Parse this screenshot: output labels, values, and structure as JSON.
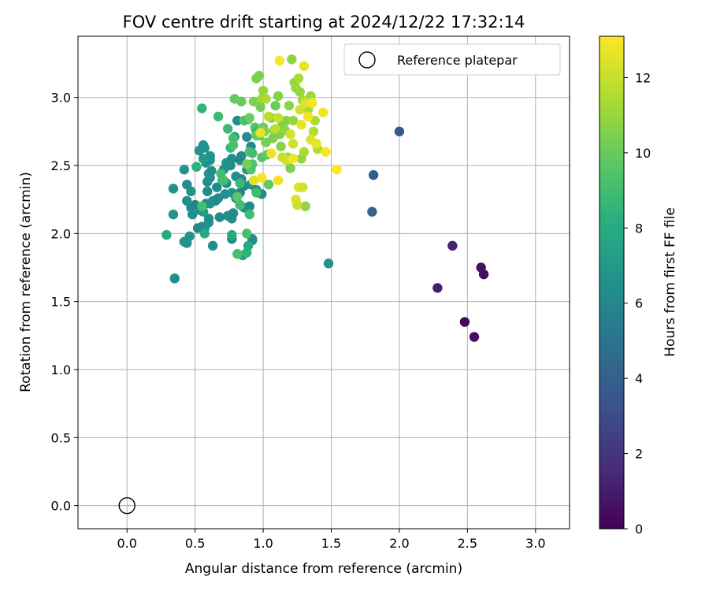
{
  "chart_data": {
    "type": "scatter",
    "title": "FOV centre drift starting at 2024/12/22 17:32:14",
    "xlabel": "Angular distance from reference (arcmin)",
    "ylabel": "Rotation from reference (arcmin)",
    "xlim": [
      -0.36,
      3.25
    ],
    "ylim": [
      -0.17,
      3.45
    ],
    "xticks": [
      "0.0",
      "0.5",
      "1.0",
      "1.5",
      "2.0",
      "2.5",
      "3.0"
    ],
    "yticks": [
      "0.0",
      "0.5",
      "1.0",
      "1.5",
      "2.0",
      "2.5",
      "3.0"
    ],
    "grid": true,
    "legend": {
      "position": "upper-right",
      "entries": [
        "Reference platepar"
      ]
    },
    "reference_point": {
      "label": "Reference platepar",
      "x": 0.0,
      "y": 0.0,
      "marker": "open-circle"
    },
    "colorbar": {
      "label": "Hours from first FF file",
      "colormap": "viridis",
      "range": [
        0,
        13.1
      ],
      "ticks": [
        "0",
        "2",
        "4",
        "6",
        "8",
        "10",
        "12"
      ]
    },
    "series": [
      {
        "marker": "filled-circle",
        "points": [
          [
            2.48,
            1.35,
            0.3
          ],
          [
            2.55,
            1.24,
            0.5
          ],
          [
            2.62,
            1.7,
            0.4
          ],
          [
            2.6,
            1.75,
            0.6
          ],
          [
            2.28,
            1.6,
            1.0
          ],
          [
            2.39,
            1.91,
            1.3
          ],
          [
            2.0,
            2.75,
            3.6
          ],
          [
            1.81,
            2.43,
            3.9
          ],
          [
            1.8,
            2.16,
            4.1
          ],
          [
            0.35,
            1.67,
            6.5
          ],
          [
            1.48,
            1.78,
            6.6
          ],
          [
            0.63,
            1.91,
            6.4
          ],
          [
            0.42,
            1.94,
            6.9
          ],
          [
            0.44,
            1.93,
            6.7
          ],
          [
            0.46,
            1.98,
            6.8
          ],
          [
            0.55,
            2.05,
            6.5
          ],
          [
            0.57,
            2.04,
            6.3
          ],
          [
            0.6,
            2.08,
            6.6
          ],
          [
            0.6,
            2.11,
            6.4
          ],
          [
            0.68,
            2.12,
            6.2
          ],
          [
            0.74,
            2.13,
            6.5
          ],
          [
            0.77,
            2.11,
            6.4
          ],
          [
            0.78,
            2.15,
            6.3
          ],
          [
            0.86,
            2.19,
            6.6
          ],
          [
            0.9,
            2.2,
            6.2
          ],
          [
            0.92,
            1.95,
            6.2
          ],
          [
            0.92,
            1.96,
            6.3
          ],
          [
            0.77,
            1.96,
            6.4
          ],
          [
            0.52,
            2.04,
            6.0
          ],
          [
            0.34,
            2.14,
            6.6
          ],
          [
            0.44,
            2.24,
            6.3
          ],
          [
            0.47,
            2.19,
            6.1
          ],
          [
            0.48,
            2.14,
            6.5
          ],
          [
            0.5,
            2.21,
            5.8
          ],
          [
            0.54,
            2.17,
            6.2
          ],
          [
            0.56,
            2.16,
            7.3
          ],
          [
            0.58,
            2.22,
            6.1
          ],
          [
            0.61,
            2.22,
            6.6
          ],
          [
            0.63,
            2.24,
            6.5
          ],
          [
            0.65,
            2.24,
            6.3
          ],
          [
            0.67,
            2.26,
            6.1
          ],
          [
            0.72,
            2.29,
            6.5
          ],
          [
            0.77,
            2.3,
            6.7
          ],
          [
            0.8,
            2.26,
            6.5
          ],
          [
            0.83,
            2.3,
            5.9
          ],
          [
            0.86,
            2.35,
            6.2
          ],
          [
            0.91,
            2.36,
            6.5
          ],
          [
            0.95,
            2.32,
            6.4
          ],
          [
            0.99,
            2.29,
            6.3
          ],
          [
            0.34,
            2.33,
            6.6
          ],
          [
            0.44,
            2.36,
            6.4
          ],
          [
            0.47,
            2.31,
            6.7
          ],
          [
            0.59,
            2.31,
            6.4
          ],
          [
            0.59,
            2.38,
            6.4
          ],
          [
            0.61,
            2.41,
            6.5
          ],
          [
            0.6,
            2.44,
            6.7
          ],
          [
            0.62,
            2.46,
            6.3
          ],
          [
            0.66,
            2.34,
            6.2
          ],
          [
            0.73,
            2.37,
            6.4
          ],
          [
            0.8,
            2.42,
            6.3
          ],
          [
            0.84,
            2.4,
            6.1
          ],
          [
            0.42,
            2.47,
            6.7
          ],
          [
            0.58,
            2.52,
            6.6
          ],
          [
            0.61,
            2.54,
            6.5
          ],
          [
            0.61,
            2.57,
            6.7
          ],
          [
            0.56,
            2.55,
            7.1
          ],
          [
            0.57,
            2.63,
            6.8
          ],
          [
            0.56,
            2.65,
            6.6
          ],
          [
            0.53,
            2.61,
            6.7
          ],
          [
            0.73,
            2.52,
            6.6
          ],
          [
            0.76,
            2.5,
            6.4
          ],
          [
            0.71,
            2.47,
            6.5
          ],
          [
            0.77,
            2.55,
            6.4
          ],
          [
            0.83,
            2.54,
            6.2
          ],
          [
            0.79,
            2.71,
            6.5
          ],
          [
            0.88,
            2.71,
            6.3
          ],
          [
            0.91,
            2.64,
            6.1
          ],
          [
            0.88,
            2.47,
            6.7
          ],
          [
            0.84,
            2.57,
            6.1
          ],
          [
            0.81,
            2.83,
            6.3
          ],
          [
            0.29,
            1.99,
            7.9
          ],
          [
            0.57,
            2.0,
            7.9
          ],
          [
            0.77,
            1.99,
            7.9
          ],
          [
            0.85,
            1.84,
            7.5
          ],
          [
            0.88,
            1.86,
            8.4
          ],
          [
            0.89,
            1.91,
            8.0
          ],
          [
            0.55,
            2.92,
            8.6
          ],
          [
            0.51,
            2.49,
            8.3
          ],
          [
            0.55,
            2.2,
            9.1
          ],
          [
            0.67,
            2.86,
            8.9
          ],
          [
            0.69,
            2.44,
            9.0
          ],
          [
            0.7,
            2.39,
            8.6
          ],
          [
            0.71,
            2.39,
            9.1
          ],
          [
            0.74,
            2.77,
            8.8
          ],
          [
            0.76,
            2.63,
            8.7
          ],
          [
            0.78,
            2.7,
            9.1
          ],
          [
            0.78,
            2.65,
            9.3
          ],
          [
            0.81,
            1.85,
            9.2
          ],
          [
            0.83,
            2.21,
            9.0
          ],
          [
            0.83,
            2.37,
            8.8
          ],
          [
            0.86,
            2.83,
            9.4
          ],
          [
            0.88,
            2.0,
            9.2
          ],
          [
            0.89,
            2.84,
            8.9
          ],
          [
            0.9,
            2.14,
            9.0
          ],
          [
            0.9,
            2.6,
            9.3
          ],
          [
            0.91,
            2.47,
            9.5
          ],
          [
            0.92,
            2.51,
            9.4
          ],
          [
            0.92,
            2.59,
            9.0
          ],
          [
            0.94,
            2.78,
            9.6
          ],
          [
            0.95,
            2.3,
            8.9
          ],
          [
            0.95,
            2.75,
            8.8
          ],
          [
            0.97,
            2.72,
            9.4
          ],
          [
            0.99,
            2.56,
            9.5
          ],
          [
            0.81,
            2.27,
            9.7
          ],
          [
            0.79,
            2.99,
            9.9
          ],
          [
            0.84,
            2.97,
            10.0
          ],
          [
            0.88,
            2.51,
            10.3
          ],
          [
            0.9,
            2.85,
            10.1
          ],
          [
            0.93,
            2.97,
            10.5
          ],
          [
            0.95,
            3.14,
            10.3
          ],
          [
            0.97,
            3.16,
            10.4
          ],
          [
            0.95,
            2.72,
            10.0
          ],
          [
            0.98,
            2.93,
            10.2
          ],
          [
            1.0,
            2.78,
            10.1
          ],
          [
            1.01,
            2.75,
            10.5
          ],
          [
            1.02,
            2.67,
            10.4
          ],
          [
            1.03,
            2.58,
            10.0
          ],
          [
            1.04,
            2.36,
            9.9
          ],
          [
            1.06,
            2.85,
            10.3
          ],
          [
            1.07,
            2.7,
            10.4
          ],
          [
            1.08,
            2.76,
            10.5
          ],
          [
            1.09,
            2.94,
            10.1
          ],
          [
            1.11,
            3.01,
            10.6
          ],
          [
            1.12,
            2.73,
            10.4
          ],
          [
            1.13,
            2.64,
            10.7
          ],
          [
            1.14,
            2.8,
            10.5
          ],
          [
            1.16,
            2.76,
            10.8
          ],
          [
            1.17,
            2.83,
            10.6
          ],
          [
            1.18,
            2.56,
            10.9
          ],
          [
            1.19,
            2.94,
            10.7
          ],
          [
            1.2,
            2.48,
            10.4
          ],
          [
            1.21,
            3.28,
            10.8
          ],
          [
            1.22,
            2.83,
            11.0
          ],
          [
            1.23,
            3.11,
            10.9
          ],
          [
            1.24,
            3.07,
            11.1
          ],
          [
            1.26,
            3.14,
            11.3
          ],
          [
            1.27,
            3.04,
            11.0
          ],
          [
            1.28,
            2.55,
            10.9
          ],
          [
            1.29,
            2.98,
            11.2
          ],
          [
            1.3,
            2.6,
            11.4
          ],
          [
            1.31,
            2.2,
            10.9
          ],
          [
            1.33,
            2.91,
            11.3
          ],
          [
            1.35,
            3.01,
            11.1
          ],
          [
            1.37,
            2.75,
            11.6
          ],
          [
            1.38,
            2.83,
            11.4
          ],
          [
            1.4,
            2.62,
            11.5
          ],
          [
            0.99,
            2.99,
            11.2
          ],
          [
            1.0,
            3.05,
            10.9
          ],
          [
            1.02,
            2.99,
            11.4
          ],
          [
            1.04,
            2.86,
            11.7
          ],
          [
            1.09,
            2.77,
            11.8
          ],
          [
            1.11,
            2.85,
            12.0
          ],
          [
            1.14,
            2.56,
            11.9
          ],
          [
            1.17,
            2.54,
            12.2
          ],
          [
            1.2,
            2.73,
            12.3
          ],
          [
            1.22,
            2.66,
            12.1
          ],
          [
            1.24,
            2.25,
            12.4
          ],
          [
            1.25,
            2.21,
            12.0
          ],
          [
            1.26,
            2.34,
            12.5
          ],
          [
            1.27,
            2.91,
            12.3
          ],
          [
            1.28,
            2.8,
            12.6
          ],
          [
            1.29,
            2.34,
            12.2
          ],
          [
            1.3,
            3.23,
            12.7
          ],
          [
            1.31,
            2.96,
            12.4
          ],
          [
            1.33,
            2.86,
            12.8
          ],
          [
            1.35,
            2.69,
            12.5
          ],
          [
            1.36,
            2.96,
            12.9
          ],
          [
            1.39,
            2.66,
            12.6
          ],
          [
            1.44,
            2.89,
            12.8
          ],
          [
            1.46,
            2.6,
            13.0
          ],
          [
            1.54,
            2.47,
            13.1
          ],
          [
            1.12,
            3.27,
            13.0
          ],
          [
            1.11,
            2.39,
            12.8
          ],
          [
            0.99,
            2.41,
            12.9
          ],
          [
            0.98,
            2.74,
            12.6
          ],
          [
            1.06,
            2.59,
            12.7
          ],
          [
            1.22,
            2.55,
            12.9
          ],
          [
            0.93,
            2.39,
            12.5
          ]
        ]
      }
    ]
  }
}
